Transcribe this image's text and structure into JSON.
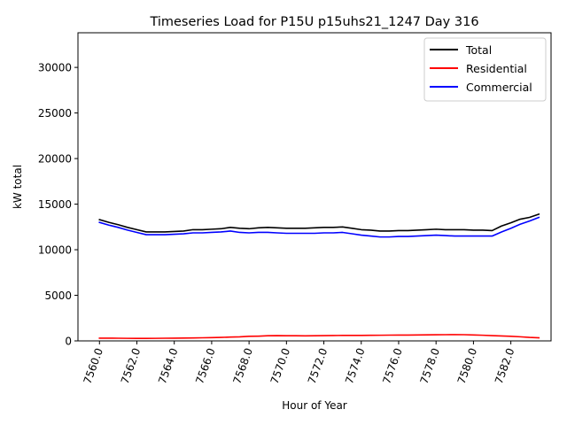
{
  "chart_data": {
    "type": "line",
    "title": "Timeseries Load for P15U p15uhs21_1247  Day 316",
    "xlabel": "Hour of Year",
    "ylabel": "kW total",
    "xlim": [
      7558.85,
      7584.15
    ],
    "ylim": [
      0,
      33800
    ],
    "x_ticks": [
      7560,
      7562,
      7564,
      7566,
      7568,
      7570,
      7572,
      7574,
      7576,
      7578,
      7580,
      7582
    ],
    "x_tick_labels": [
      "7560.0",
      "7562.0",
      "7564.0",
      "7566.0",
      "7568.0",
      "7570.0",
      "7572.0",
      "7574.0",
      "7576.0",
      "7578.0",
      "7580.0",
      "7582.0"
    ],
    "y_ticks": [
      0,
      5000,
      10000,
      15000,
      20000,
      25000,
      30000
    ],
    "y_tick_labels": [
      "0",
      "5000",
      "10000",
      "15000",
      "20000",
      "25000",
      "30000"
    ],
    "legend_position": "top-right",
    "x": [
      7560,
      7560.5,
      7561,
      7561.5,
      7562,
      7562.5,
      7563,
      7563.5,
      7564,
      7564.5,
      7565,
      7565.5,
      7566,
      7566.5,
      7567,
      7567.5,
      7568,
      7568.5,
      7569,
      7569.5,
      7570,
      7570.5,
      7571,
      7571.5,
      7572,
      7572.5,
      7573,
      7573.5,
      7574,
      7574.5,
      7575,
      7575.5,
      7576,
      7576.5,
      7577,
      7577.5,
      7578,
      7578.5,
      7579,
      7579.5,
      7580,
      7580.5,
      7581,
      7581.5,
      7582,
      7582.5,
      7583,
      7583.5
    ],
    "series": [
      {
        "name": "Total",
        "color": "#000000",
        "values": [
          13300,
          13000,
          12750,
          12450,
          12200,
          11950,
          11950,
          11950,
          12000,
          12050,
          12200,
          12200,
          12250,
          12300,
          12450,
          12350,
          12300,
          12400,
          12450,
          12400,
          12350,
          12350,
          12350,
          12400,
          12450,
          12450,
          12500,
          12350,
          12200,
          12150,
          12050,
          12050,
          12100,
          12100,
          12150,
          12200,
          12250,
          12200,
          12200,
          12200,
          12150,
          12150,
          12100,
          12600,
          12950,
          13350,
          13550,
          13900
        ]
      },
      {
        "name": "Residential",
        "color": "#ff0000",
        "values": [
          300,
          300,
          290,
          280,
          270,
          270,
          280,
          290,
          300,
          310,
          320,
          340,
          360,
          380,
          420,
          440,
          500,
          520,
          560,
          580,
          560,
          560,
          550,
          560,
          580,
          590,
          600,
          600,
          600,
          610,
          620,
          630,
          640,
          640,
          650,
          660,
          670,
          680,
          690,
          680,
          650,
          620,
          580,
          540,
          500,
          450,
          380,
          340
        ]
      },
      {
        "name": "Commercial",
        "color": "#0000ff",
        "values": [
          13000,
          12700,
          12450,
          12150,
          11900,
          11650,
          11650,
          11650,
          11700,
          11750,
          11850,
          11850,
          11900,
          11950,
          12050,
          11900,
          11850,
          11900,
          11900,
          11850,
          11800,
          11800,
          11800,
          11800,
          11850,
          11850,
          11900,
          11750,
          11600,
          11500,
          11400,
          11400,
          11450,
          11450,
          11500,
          11550,
          11600,
          11550,
          11500,
          11500,
          11500,
          11500,
          11500,
          11950,
          12350,
          12800,
          13150,
          13550
        ]
      }
    ]
  }
}
